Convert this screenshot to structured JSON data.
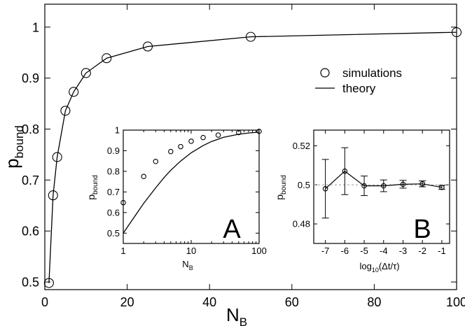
{
  "chart_data": [
    {
      "type": "line",
      "panel": "main",
      "xlabel": "N",
      "xlabel_sub": "B",
      "ylabel": "p",
      "ylabel_sub": "bound",
      "xlim": [
        0,
        100
      ],
      "ylim": [
        0.485,
        1.045
      ],
      "xticks": [
        0,
        20,
        40,
        60,
        80,
        100
      ],
      "xtick_labels": [
        "0",
        "20",
        "40",
        "60",
        "80",
        "100"
      ],
      "yticks": [
        0.5,
        0.6,
        0.7,
        0.8,
        0.9,
        1.0
      ],
      "ytick_labels": [
        "0.5",
        "0.6",
        "0.7",
        "0.8",
        "0.9",
        "1"
      ],
      "legend": {
        "position": "right",
        "entries": [
          "simulations",
          "theory"
        ]
      },
      "series": [
        {
          "name": "simulations",
          "marker": "open-circle",
          "x": [
            1,
            2,
            3,
            5,
            7,
            10,
            15,
            25,
            50,
            100
          ],
          "y": [
            0.498,
            0.67,
            0.745,
            0.836,
            0.873,
            0.91,
            0.939,
            0.962,
            0.981,
            0.99
          ]
        },
        {
          "name": "theory",
          "style": "line",
          "x": [
            1,
            2,
            3,
            5,
            7,
            10,
            15,
            25,
            50,
            100
          ],
          "y": [
            0.498,
            0.67,
            0.745,
            0.836,
            0.873,
            0.91,
            0.939,
            0.962,
            0.981,
            0.99
          ]
        }
      ]
    },
    {
      "type": "scatter",
      "panel": "A",
      "panel_label": "A",
      "xscale": "log",
      "xlabel": "N",
      "xlabel_sub": "B",
      "ylabel": "p",
      "ylabel_sub": "bound",
      "xlim": [
        1,
        100
      ],
      "ylim": [
        0.45,
        1.0
      ],
      "xticks": [
        1,
        10,
        100
      ],
      "xtick_labels": [
        "1",
        "10",
        "100"
      ],
      "yticks": [
        0.5,
        0.6,
        0.7,
        0.8,
        0.9,
        1.0
      ],
      "ytick_labels": [
        "0.5",
        "0.6",
        "0.7",
        "0.8",
        "0.9",
        "1"
      ],
      "series": [
        {
          "marker": "open-circle",
          "x": [
            1,
            2,
            3,
            5,
            7,
            10,
            15,
            25,
            50,
            100
          ],
          "y": [
            0.648,
            0.775,
            0.848,
            0.896,
            0.92,
            0.946,
            0.964,
            0.976,
            0.988,
            0.994
          ]
        },
        {
          "style": "line",
          "x": [
            1,
            1.5,
            2,
            3,
            4,
            5,
            7,
            10,
            15,
            20,
            30,
            50,
            70,
            100
          ],
          "y": [
            0.5,
            0.585,
            0.645,
            0.72,
            0.77,
            0.805,
            0.85,
            0.89,
            0.925,
            0.945,
            0.965,
            0.98,
            0.986,
            0.99
          ]
        }
      ]
    },
    {
      "type": "line",
      "panel": "B",
      "panel_label": "B",
      "xlabel": "log",
      "xlabel_sub": "10",
      "xlabel_suffix": "(Δt/τ)",
      "ylabel": "p",
      "ylabel_sub": "bound",
      "xlim": [
        -7.6,
        -0.6
      ],
      "ylim": [
        0.47,
        0.528
      ],
      "xticks": [
        -7,
        -6,
        -5,
        -4,
        -3,
        -2,
        -1
      ],
      "xtick_labels": [
        "-7",
        "-6",
        "-5",
        "-4",
        "-3",
        "-2",
        "-1"
      ],
      "yticks": [
        0.48,
        0.5,
        0.52
      ],
      "ytick_labels": [
        "0.48",
        "0.5",
        "0.52"
      ],
      "reference_line": 0.5,
      "series": [
        {
          "marker": "open-circle",
          "error_bars": true,
          "x": [
            -7,
            -6,
            -5,
            -4,
            -3,
            -2,
            -1
          ],
          "y": [
            0.498,
            0.507,
            0.4995,
            0.4995,
            0.5003,
            0.5005,
            0.4987
          ],
          "err": [
            0.015,
            0.012,
            0.005,
            0.003,
            0.002,
            0.0015,
            0.001
          ]
        }
      ]
    }
  ]
}
